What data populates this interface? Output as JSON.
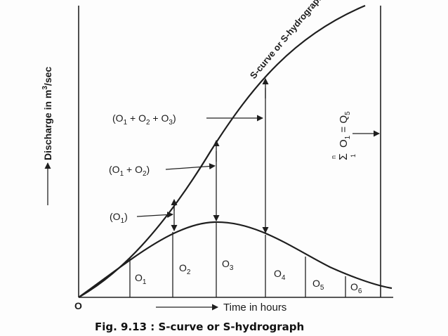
{
  "diagram": {
    "y_axis_label": "Discharge in m",
    "y_axis_exp": "3",
    "y_axis_unit": "/sec",
    "x_axis_label": "Time in hours",
    "origin": "O",
    "caption": "Fig. 9.13 : S-curve or S-hydrograph",
    "s_curve_label": "S-curve or S-hydrograph",
    "sum_label": {
      "sigma": "Σ",
      "n": "n",
      "one": "1",
      "o": "O",
      "sub": "1",
      "eq": " = ",
      "q": "Q",
      "qsub": "5"
    },
    "annotations": [
      {
        "id": "o1",
        "text": "(O",
        "sub": "1",
        "tail": ")"
      },
      {
        "id": "o12",
        "text": "(O",
        "sub": "1",
        "mid": " + O",
        "sub2": "2",
        "tail": ")"
      },
      {
        "id": "o123",
        "text": "(O",
        "sub": "1",
        "mid": " + O",
        "sub2": "2",
        "mid2": " + O",
        "sub3": "3",
        "tail": ")"
      }
    ],
    "ordinates": [
      {
        "letter": "O",
        "sub": "1"
      },
      {
        "letter": "O",
        "sub": "2"
      },
      {
        "letter": "O",
        "sub": "3"
      },
      {
        "letter": "O",
        "sub": "4"
      },
      {
        "letter": "O",
        "sub": "5"
      },
      {
        "letter": "O",
        "sub": "6"
      }
    ]
  },
  "colors": {
    "ink": "#1e1e1e",
    "background": "#fdfdfd"
  }
}
